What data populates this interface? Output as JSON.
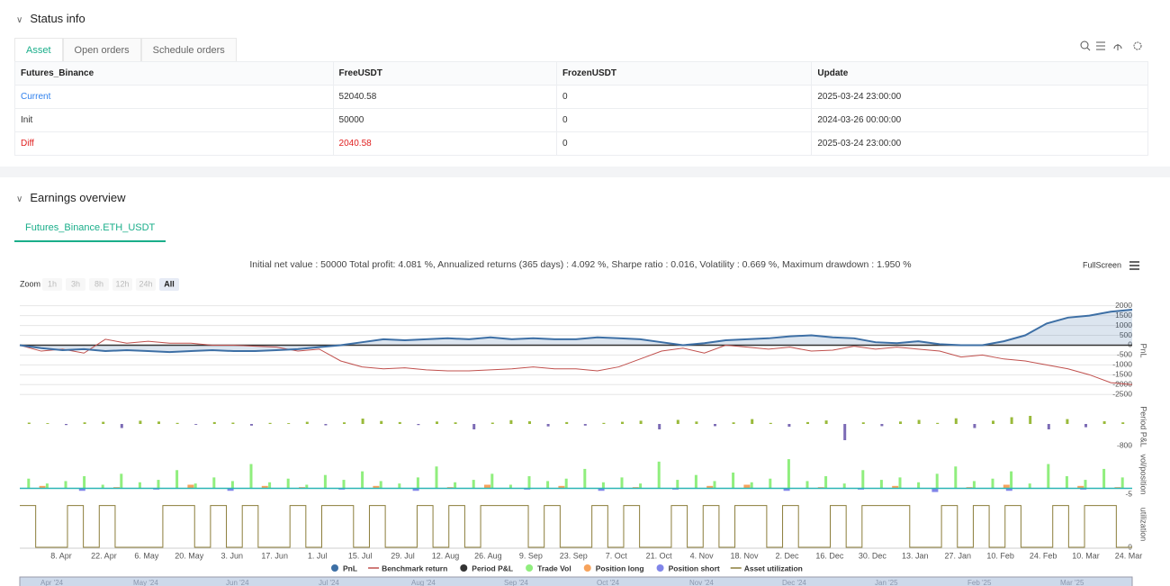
{
  "status": {
    "title": "Status info",
    "tabs": [
      "Asset",
      "Open orders",
      "Schedule orders"
    ],
    "table": {
      "headers": [
        "Futures_Binance",
        "FreeUSDT",
        "FrozenUSDT",
        "Update"
      ],
      "rows": [
        [
          "Current",
          "52040.58",
          "0",
          "2025-03-24 23:00:00"
        ],
        [
          "Init",
          "50000",
          "0",
          "2024-03-26 00:00:00"
        ],
        [
          "Diff",
          "2040.58",
          "0",
          "2025-03-24 23:00:00"
        ]
      ]
    }
  },
  "earnings": {
    "title": "Earnings overview",
    "tab": "Futures_Binance.ETH_USDT",
    "summary": "Initial net value : 50000 Total profit: 4.081 %, Annualized returns (365 days) : 4.092 %, Sharpe ratio : 0.016, Volatility : 0.669 %, Maximum drawdown : 1.950 %",
    "fullscreen": "FullScreen",
    "zoom_label": "Zoom",
    "zoom_buttons": [
      "1h",
      "3h",
      "8h",
      "12h",
      "24h",
      "All"
    ],
    "chart": {
      "categories": [
        "8. Apr",
        "22. Apr",
        "6. May",
        "20. May",
        "3. Jun",
        "17. Jun",
        "1. Jul",
        "15. Jul",
        "29. Jul",
        "12. Aug",
        "26. Aug",
        "9. Sep",
        "23. Sep",
        "7. Oct",
        "21. Oct",
        "4. Nov",
        "18. Nov",
        "2. Dec",
        "16. Dec",
        "30. Dec",
        "13. Jan",
        "27. Jan",
        "10. Feb",
        "24. Feb",
        "10. Mar",
        "24. Mar"
      ],
      "pnl_panel": {
        "label": "PnL",
        "ylim": [
          -2900,
          2350
        ],
        "yticks": [
          2000,
          1500,
          1000,
          500,
          0,
          -500,
          -1000,
          -1500,
          -2000,
          -2500
        ]
      },
      "pnl": {
        "name": "PnL",
        "color": "#3d6fa5",
        "values": [
          0,
          -150,
          -250,
          -200,
          -300,
          -250,
          -300,
          -350,
          -300,
          -250,
          -300,
          -300,
          -250,
          -200,
          -100,
          0,
          150,
          300,
          250,
          300,
          350,
          300,
          400,
          300,
          350,
          300,
          300,
          400,
          350,
          300,
          150,
          0,
          100,
          250,
          300,
          350,
          450,
          500,
          400,
          350,
          150,
          100,
          200,
          50,
          0,
          0,
          200,
          500,
          1100,
          1400,
          1500,
          1700,
          1800
        ]
      },
      "benchmark": {
        "name": "Benchmark return",
        "color": "#c0504d",
        "values": [
          0,
          -300,
          -200,
          -400,
          300,
          100,
          200,
          100,
          100,
          0,
          0,
          -50,
          -100,
          -300,
          -200,
          -800,
          -1100,
          -1200,
          -1150,
          -1250,
          -1300,
          -1300,
          -1250,
          -1200,
          -1100,
          -1200,
          -1200,
          -1300,
          -1100,
          -700,
          -300,
          -150,
          -400,
          0,
          -100,
          -200,
          -100,
          -300,
          -250,
          -50,
          -200,
          -100,
          -200,
          -300,
          -600,
          -500,
          -700,
          -800,
          -1000,
          -1200,
          -1500,
          -1900,
          -2000
        ]
      },
      "period_panel": {
        "label": "Period P&L",
        "ylim": [
          -900,
          700
        ],
        "yticks": [
          -800
        ]
      },
      "period": {
        "name": "Period P&L",
        "color": "#333333",
        "pos_color": "#9aba3b",
        "neg_color": "#7c6bb5",
        "values": [
          50,
          30,
          -40,
          60,
          80,
          -150,
          120,
          90,
          40,
          -30,
          70,
          50,
          -60,
          40,
          30,
          80,
          -50,
          60,
          200,
          110,
          70,
          -40,
          90,
          60,
          -200,
          50,
          140,
          100,
          -90,
          70,
          -60,
          40,
          80,
          120,
          -200,
          150,
          90,
          -80,
          60,
          180,
          40,
          -100,
          70,
          130,
          -600,
          60,
          -80,
          90,
          150,
          40,
          210,
          -150,
          120,
          250,
          300,
          -200,
          180,
          -120,
          100,
          60
        ]
      },
      "vol_panel": {
        "label": "vol/position",
        "ylim": [
          -7,
          30
        ],
        "yticks": [
          -5
        ]
      },
      "trade_vol": {
        "name": "Trade Vol",
        "color": "#90ee7e",
        "values": [
          8,
          4,
          6,
          10,
          3,
          12,
          5,
          7,
          15,
          4,
          9,
          6,
          20,
          5,
          8,
          3,
          11,
          7,
          14,
          6,
          4,
          9,
          18,
          5,
          7,
          12,
          3,
          10,
          6,
          8,
          16,
          5,
          9,
          4,
          22,
          7,
          11,
          6,
          13,
          5,
          8,
          24,
          6,
          10,
          4,
          15,
          7,
          9,
          5,
          12,
          18,
          6,
          8,
          14,
          4,
          20,
          10,
          7,
          16,
          9
        ]
      },
      "position_long": {
        "name": "Position long",
        "color": "#f7a35c",
        "values": [
          2,
          0,
          1,
          0,
          3,
          0,
          2,
          1,
          0,
          2,
          0,
          1,
          3,
          0,
          2,
          0,
          1,
          0,
          2,
          3,
          0,
          1,
          0,
          2,
          0,
          1,
          3,
          0,
          2,
          1
        ]
      },
      "position_short": {
        "name": "Position short",
        "color": "#8085e9",
        "values": [
          0,
          -2,
          0,
          -1,
          0,
          -2,
          0,
          0,
          -1,
          0,
          -2,
          0,
          0,
          -1,
          0,
          -2,
          0,
          -1,
          0,
          0,
          -2,
          0,
          -1,
          0,
          -3,
          0,
          -2,
          0,
          -1,
          0
        ]
      },
      "util_panel": {
        "label": "utilization",
        "ylim": [
          0,
          1.1
        ],
        "yticks": [
          0
        ]
      },
      "utilization": {
        "name": "Asset utilization",
        "color": "#8b7d3a",
        "values": [
          1,
          0,
          0,
          1,
          0,
          1,
          0,
          0,
          0,
          1,
          1,
          0,
          1,
          0,
          1,
          0,
          0,
          1,
          0,
          1,
          1,
          0,
          1,
          0,
          0,
          1,
          0,
          1,
          0,
          1,
          1,
          1,
          0,
          1,
          0,
          0,
          1,
          0,
          1,
          0,
          0,
          1,
          0,
          1,
          0,
          1,
          1,
          0,
          1,
          0,
          0,
          1,
          0,
          1,
          1,
          1,
          0,
          0,
          1,
          0,
          1,
          0,
          1,
          0,
          0,
          1,
          0,
          1,
          1,
          0
        ]
      },
      "navigator": [
        "Apr '24",
        "May '24",
        "Jun '24",
        "Jul '24",
        "Aug '24",
        "Sep '24",
        "Oct '24",
        "Nov '24",
        "Dec '24",
        "Jan '25",
        "Feb '25",
        "Mar '25"
      ]
    }
  }
}
